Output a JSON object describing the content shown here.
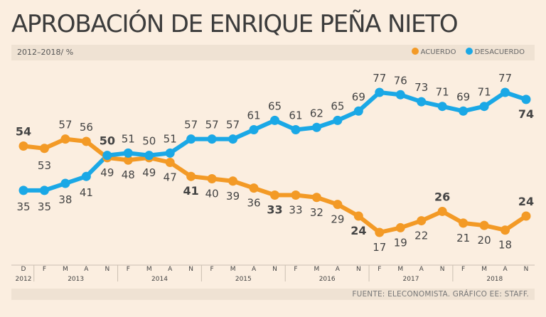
{
  "title": "APROBACIÓN DE ENRIQUE PEÑA NIETO",
  "subtitle": "2012–2018/ %",
  "source": "FUENTE: ELECONOMISTA. GRÁFICO EE: STAFF.",
  "colors": {
    "acuerdo": "#f39a26",
    "desacuerdo": "#1aa8e6"
  },
  "chart_data": {
    "type": "line",
    "title": "APROBACIÓN DE ENRIQUE PEÑA NIETO",
    "xlabel": "",
    "ylabel": "%",
    "ylim": [
      15,
      80
    ],
    "grid": false,
    "legend_position": "top-right",
    "x_ticks": [
      "D",
      "F",
      "M",
      "A",
      "N",
      "F",
      "M",
      "A",
      "N",
      "F",
      "M",
      "A",
      "N",
      "F",
      "M",
      "A",
      "N",
      "F",
      "M",
      "A",
      "N",
      "F",
      "M",
      "A",
      "N"
    ],
    "year_labels": [
      {
        "label": "2012",
        "index": 0
      },
      {
        "label": "2013",
        "index": 2.5
      },
      {
        "label": "2014",
        "index": 6.5
      },
      {
        "label": "2015",
        "index": 10.5
      },
      {
        "label": "2016",
        "index": 14.5
      },
      {
        "label": "2017",
        "index": 18.5
      },
      {
        "label": "2018",
        "index": 22.5
      }
    ],
    "series": [
      {
        "name": "ACUERDO",
        "values": [
          54,
          53,
          57,
          56,
          49,
          48,
          49,
          47,
          41,
          40,
          39,
          36,
          33,
          33,
          32,
          29,
          24,
          17,
          19,
          22,
          26,
          21,
          20,
          18,
          24
        ],
        "bold_indices": [
          0,
          8,
          12,
          16,
          20,
          24
        ]
      },
      {
        "name": "DESACUERDO",
        "values": [
          35,
          35,
          38,
          41,
          50,
          51,
          50,
          51,
          57,
          57,
          57,
          61,
          65,
          61,
          62,
          65,
          69,
          77,
          76,
          73,
          71,
          69,
          71,
          77,
          74
        ],
        "bold_indices": [
          4,
          24
        ]
      }
    ]
  }
}
